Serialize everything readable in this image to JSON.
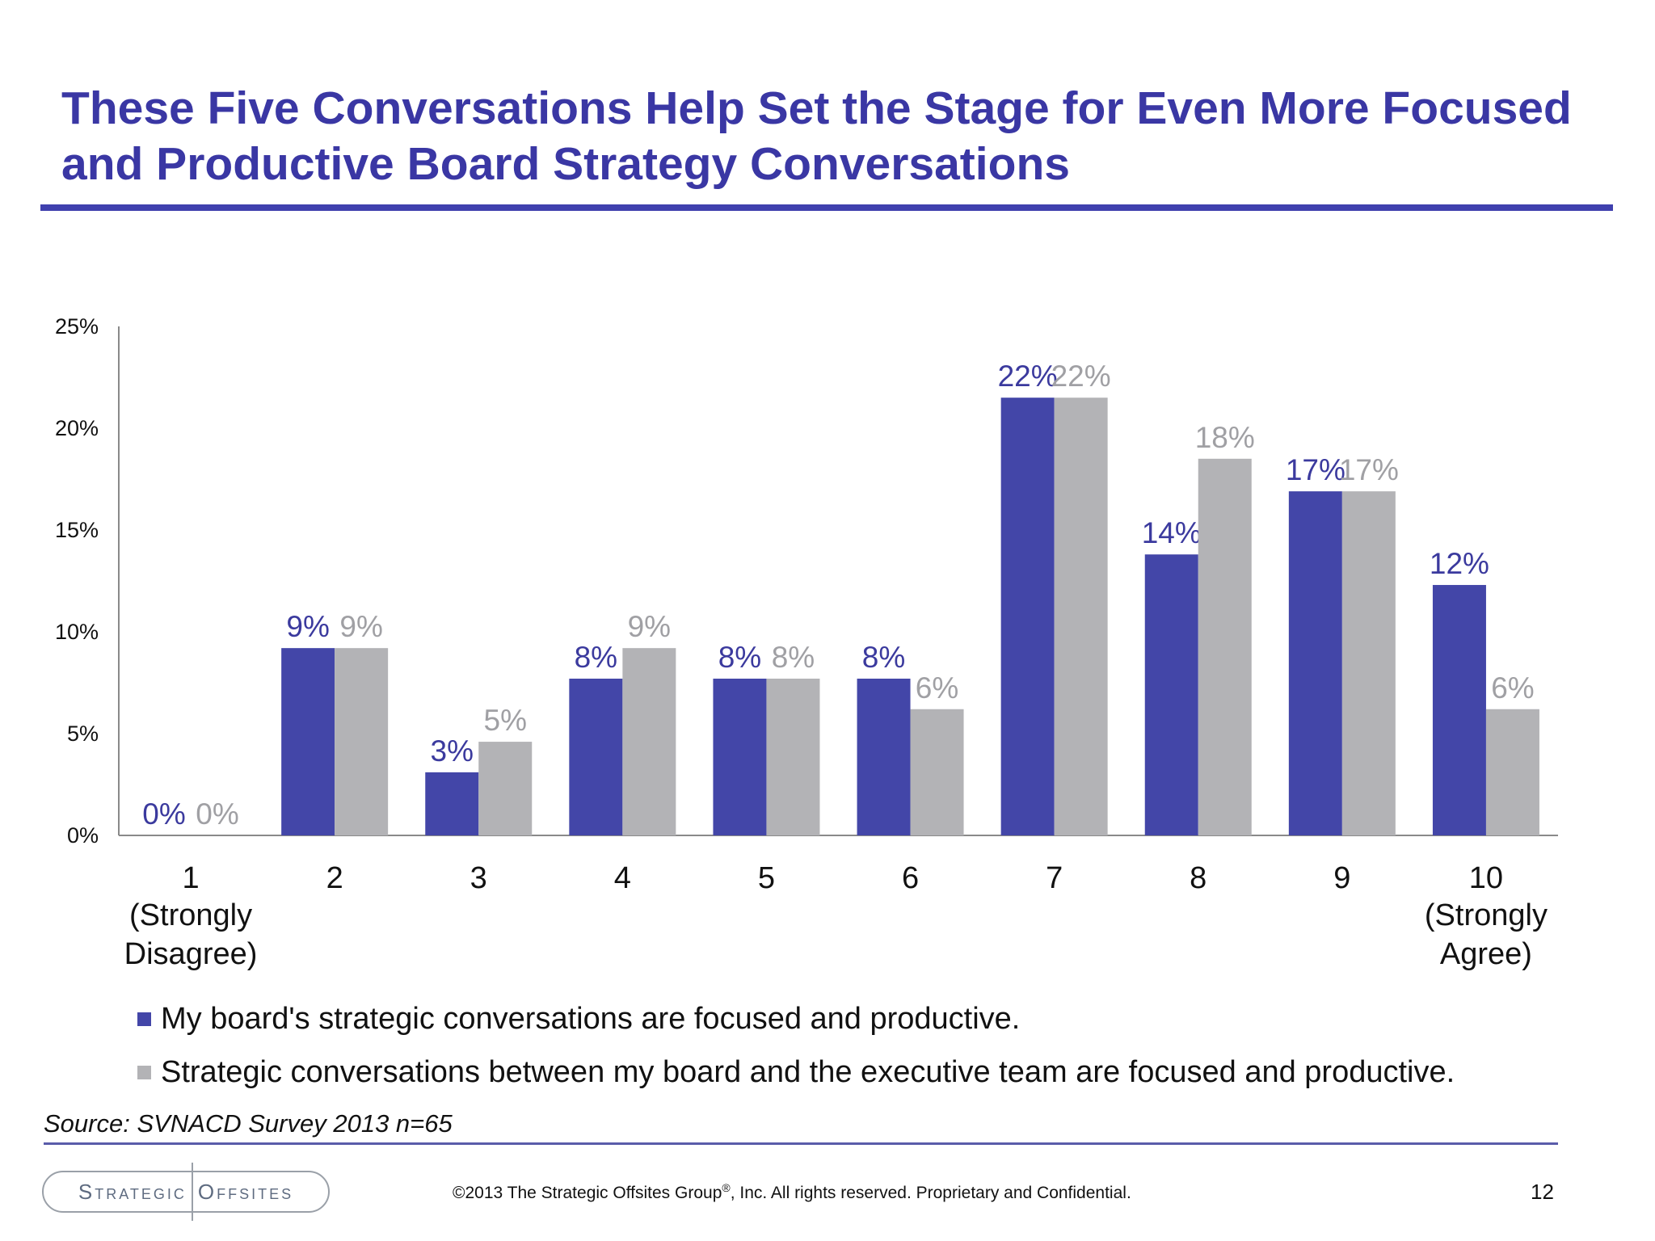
{
  "slide": {
    "title_line1": "These Five Conversations Help Set the Stage for Even More Focused",
    "title_line2": "and Productive Board Strategy Conversations",
    "source": "Source:  SVNACD Survey 2013 n=65",
    "logo_left": "Strategic",
    "logo_right": "Offsites",
    "copyright_before": "©2013 The Strategic Offsites Group",
    "copyright_reg": "®",
    "copyright_after": ", Inc.  All rights reserved. Proprietary and Confidential.",
    "page_number": "12"
  },
  "colors": {
    "title": "#3a37a4",
    "series1": "#4346a8",
    "series2": "#b3b3b6",
    "label1": "#3b3a9e",
    "label2": "#a0a0a4",
    "axis": "#8a8a8a"
  },
  "chart_data": {
    "type": "bar",
    "categories": [
      "1",
      "2",
      "3",
      "4",
      "5",
      "6",
      "7",
      "8",
      "9",
      "10"
    ],
    "category_sublabels": [
      [
        "(Strongly",
        "Disagree)"
      ],
      [],
      [],
      [],
      [],
      [],
      [],
      [],
      [],
      [
        "(Strongly",
        "Agree)"
      ]
    ],
    "series": [
      {
        "name": "My board's strategic conversations are focused and productive.",
        "values": [
          0,
          9.2,
          3.1,
          7.7,
          7.7,
          7.7,
          21.5,
          13.8,
          16.9,
          12.3
        ],
        "labels": [
          "0%",
          "9%",
          "3%",
          "8%",
          "8%",
          "8%",
          "22%",
          "14%",
          "17%",
          "12%"
        ]
      },
      {
        "name": "Strategic conversations between my board and the executive team are focused and productive.",
        "values": [
          0,
          9.2,
          4.6,
          9.2,
          7.7,
          6.2,
          21.5,
          18.5,
          16.9,
          6.2
        ],
        "labels": [
          "0%",
          "9%",
          "5%",
          "9%",
          "8%",
          "6%",
          "22%",
          "18%",
          "17%",
          "6%"
        ]
      }
    ],
    "yticks": [
      "0%",
      "5%",
      "10%",
      "15%",
      "20%",
      "25%"
    ],
    "ytick_values": [
      0,
      5,
      10,
      15,
      20,
      25
    ],
    "ylim": [
      0,
      25
    ],
    "title": "",
    "xlabel": "",
    "ylabel": "",
    "grid": false,
    "legend": "bottom-left"
  }
}
